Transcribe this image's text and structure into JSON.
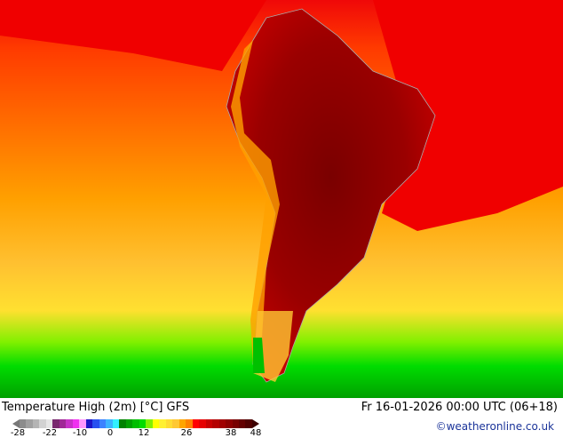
{
  "title": "Temperature High (2m) [°C] GFS",
  "datetime": "Fr 16-01-2026 00:00 UTC (06+18)",
  "credit": "©weatheronline.co.uk",
  "legend": {
    "ticks": [
      "-28",
      "-22",
      "-10",
      "0",
      "12",
      "26",
      "38",
      "48"
    ],
    "low_color": "#787878",
    "high_color": "#3c0000",
    "colors": [
      "#8c8c8c",
      "#a0a0a0",
      "#b4b4b4",
      "#d2d2d2",
      "#e6e6e6",
      "#78286e",
      "#a02896",
      "#c832c8",
      "#f032f0",
      "#ff96ff",
      "#1e14c8",
      "#2850f0",
      "#3c82ff",
      "#3cb4ff",
      "#32f0ff",
      "#008200",
      "#00a000",
      "#00be00",
      "#00dc00",
      "#82f000",
      "#ffff00",
      "#fff032",
      "#ffdc32",
      "#ffc832",
      "#ffa500",
      "#ff8200",
      "#ff0000",
      "#e60000",
      "#c80000",
      "#b40000",
      "#a00000",
      "#8c0000",
      "#780000",
      "#640000",
      "#500000"
    ]
  }
}
